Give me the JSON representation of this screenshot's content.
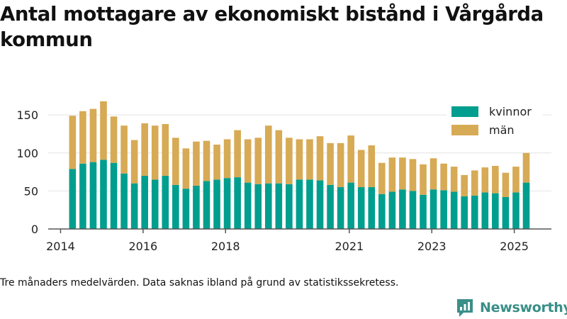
{
  "title": "Antal mottagare av ekonomiskt bistånd i Vårgårda kommun",
  "footnote": "Tre månaders medelvärden. Data saknas ibland på grund av statistikssekretess.",
  "brand": {
    "name": "Newsworthy",
    "color": "#3a8f88"
  },
  "colors": {
    "kvinnor": "#009e8e",
    "man": "#d7aa55",
    "axis": "#555555",
    "grid": "#e4e4e4"
  },
  "chart_data": {
    "type": "bar",
    "stacked": true,
    "grid": "horizontal",
    "legend_position": "top-right",
    "title": "Antal mottagare av ekonomiskt bistånd i Vårgårda kommun",
    "xlabel": "",
    "ylabel": "",
    "ylim": [
      0,
      180
    ],
    "yticks": [
      0,
      50,
      100,
      150
    ],
    "xticks": [
      {
        "label": "2014",
        "value": 2014.0
      },
      {
        "label": "2016",
        "value": 2016.0
      },
      {
        "label": "2018",
        "value": 2018.0
      },
      {
        "label": "2021",
        "value": 2021.0
      },
      {
        "label": "2023",
        "value": 2023.0
      },
      {
        "label": "2025",
        "value": 2025.0
      }
    ],
    "xlim": [
      2013.7,
      2025.9
    ],
    "x": [
      2014.29,
      2014.54,
      2014.79,
      2015.04,
      2015.29,
      2015.54,
      2015.79,
      2016.04,
      2016.29,
      2016.54,
      2016.79,
      2017.04,
      2017.29,
      2017.54,
      2017.79,
      2018.04,
      2018.29,
      2018.54,
      2018.79,
      2019.04,
      2019.29,
      2019.54,
      2019.79,
      2020.04,
      2020.29,
      2020.54,
      2020.79,
      2021.04,
      2021.29,
      2021.54,
      2021.79,
      2022.04,
      2022.29,
      2022.54,
      2022.79,
      2023.04,
      2023.29,
      2023.54,
      2023.79,
      2024.04,
      2024.29,
      2024.54,
      2024.79,
      2025.04,
      2025.29
    ],
    "series": [
      {
        "name": "kvinnor",
        "values": [
          79,
          86,
          88,
          91,
          87,
          73,
          60,
          70,
          65,
          70,
          58,
          53,
          57,
          63,
          65,
          67,
          68,
          61,
          59,
          60,
          60,
          59,
          65,
          65,
          64,
          58,
          55,
          61,
          55,
          55,
          46,
          49,
          52,
          50,
          45,
          52,
          51,
          49,
          43,
          44,
          48,
          47,
          42,
          48,
          61
        ]
      },
      {
        "name": "män",
        "values": [
          70,
          69,
          70,
          77,
          61,
          63,
          57,
          69,
          71,
          68,
          62,
          53,
          58,
          53,
          46,
          51,
          62,
          57,
          61,
          76,
          70,
          61,
          53,
          53,
          58,
          55,
          58,
          62,
          49,
          55,
          41,
          45,
          42,
          42,
          40,
          41,
          35,
          33,
          28,
          33,
          33,
          36,
          32,
          34,
          39
        ]
      }
    ]
  }
}
